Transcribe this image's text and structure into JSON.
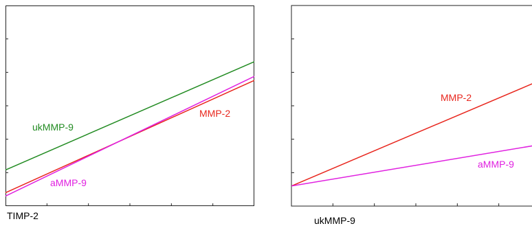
{
  "chart_data": [
    {
      "type": "line",
      "title": "",
      "xlabel": "TIMP-2",
      "ylabel": "",
      "x_range": [
        0,
        1
      ],
      "y_range": [
        0,
        1
      ],
      "grid": false,
      "legend": "none",
      "series": [
        {
          "name": "ukMMP-9",
          "color": "#228b22",
          "x": [
            0,
            1
          ],
          "y": [
            0.18,
            0.72
          ]
        },
        {
          "name": "MMP-2",
          "color": "#e8261d",
          "x": [
            0,
            1
          ],
          "y": [
            0.0667,
            0.6267
          ]
        },
        {
          "name": "aMMP-9",
          "color": "#e020e0",
          "x": [
            0,
            1
          ],
          "y": [
            0.05,
            0.6467
          ]
        }
      ]
    },
    {
      "type": "line",
      "title": "",
      "xlabel": "ukMMP-9",
      "ylabel": "",
      "x_range": [
        0,
        1
      ],
      "y_range": [
        0,
        1
      ],
      "grid": false,
      "legend": "none",
      "series": [
        {
          "name": "MMP-2",
          "color": "#e8261d",
          "x": [
            0,
            1
          ],
          "y": [
            0.1,
            0.6267
          ]
        },
        {
          "name": "aMMP-9",
          "color": "#e020e0",
          "x": [
            0,
            1
          ],
          "y": [
            0.1,
            0.3067
          ]
        }
      ]
    }
  ]
}
